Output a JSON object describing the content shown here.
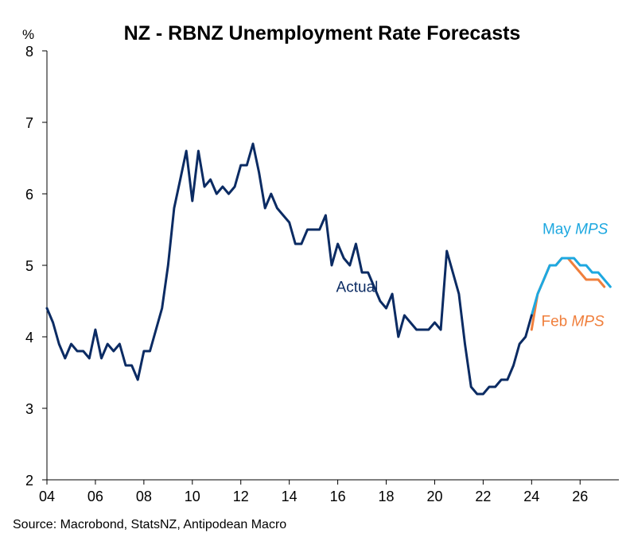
{
  "chart_data": {
    "type": "line",
    "title": "NZ - RBNZ Unemployment Rate Forecasts",
    "ylabel": "%",
    "xlabel": "",
    "xlim": [
      2004,
      2027.6
    ],
    "ylim": [
      2,
      8
    ],
    "yticks": [
      2,
      3,
      4,
      5,
      6,
      7,
      8
    ],
    "xticks": [
      2004,
      2006,
      2008,
      2010,
      2012,
      2014,
      2016,
      2018,
      2020,
      2022,
      2024,
      2026
    ],
    "xtick_labels": [
      "04",
      "06",
      "08",
      "10",
      "12",
      "14",
      "16",
      "18",
      "20",
      "22",
      "24",
      "26"
    ],
    "grid": false,
    "series": [
      {
        "name": "Actual",
        "color": "#0b2b63",
        "x": [
          2004.0,
          2004.25,
          2004.5,
          2004.75,
          2005.0,
          2005.25,
          2005.5,
          2005.75,
          2006.0,
          2006.25,
          2006.5,
          2006.75,
          2007.0,
          2007.25,
          2007.5,
          2007.75,
          2008.0,
          2008.25,
          2008.5,
          2008.75,
          2009.0,
          2009.25,
          2009.5,
          2009.75,
          2010.0,
          2010.25,
          2010.5,
          2010.75,
          2011.0,
          2011.25,
          2011.5,
          2011.75,
          2012.0,
          2012.25,
          2012.5,
          2012.75,
          2013.0,
          2013.25,
          2013.5,
          2013.75,
          2014.0,
          2014.25,
          2014.5,
          2014.75,
          2015.0,
          2015.25,
          2015.5,
          2015.75,
          2016.0,
          2016.25,
          2016.5,
          2016.75,
          2017.0,
          2017.25,
          2017.5,
          2017.75,
          2018.0,
          2018.25,
          2018.5,
          2018.75,
          2019.0,
          2019.25,
          2019.5,
          2019.75,
          2020.0,
          2020.25,
          2020.5,
          2020.75,
          2021.0,
          2021.25,
          2021.5,
          2021.75,
          2022.0,
          2022.25,
          2022.5,
          2022.75,
          2023.0,
          2023.25,
          2023.5,
          2023.75,
          2024.0
        ],
        "values": [
          4.4,
          4.2,
          3.9,
          3.7,
          3.9,
          3.8,
          3.8,
          3.7,
          4.1,
          3.7,
          3.9,
          3.8,
          3.9,
          3.6,
          3.6,
          3.4,
          3.8,
          3.8,
          4.1,
          4.4,
          5.0,
          5.8,
          6.2,
          6.6,
          5.9,
          6.6,
          6.1,
          6.2,
          6.0,
          6.1,
          6.0,
          6.1,
          6.4,
          6.4,
          6.7,
          6.3,
          5.8,
          6.0,
          5.8,
          5.7,
          5.6,
          5.3,
          5.3,
          5.5,
          5.5,
          5.5,
          5.7,
          5.0,
          5.3,
          5.1,
          5.0,
          5.3,
          4.9,
          4.9,
          4.7,
          4.5,
          4.4,
          4.6,
          4.0,
          4.3,
          4.2,
          4.1,
          4.1,
          4.1,
          4.2,
          4.1,
          5.2,
          4.9,
          4.6,
          3.9,
          3.3,
          3.2,
          3.2,
          3.3,
          3.3,
          3.4,
          3.4,
          3.6,
          3.9,
          4.0,
          4.3
        ]
      },
      {
        "name": "Feb MPS",
        "color": "#f07f3c",
        "x": [
          2024.0,
          2024.25,
          2024.5,
          2024.75,
          2025.0,
          2025.25,
          2025.5,
          2025.75,
          2026.0,
          2026.25,
          2026.5,
          2026.75,
          2027.0
        ],
        "values": [
          4.1,
          4.6,
          4.8,
          5.0,
          5.0,
          5.1,
          5.1,
          5.0,
          4.9,
          4.8,
          4.8,
          4.8,
          4.7
        ]
      },
      {
        "name": "May MPS",
        "color": "#1ea8e0",
        "x": [
          2024.0,
          2024.25,
          2024.5,
          2024.75,
          2025.0,
          2025.25,
          2025.5,
          2025.75,
          2026.0,
          2026.25,
          2026.5,
          2026.75,
          2027.0,
          2027.25
        ],
        "values": [
          4.3,
          4.6,
          4.8,
          5.0,
          5.0,
          5.1,
          5.1,
          5.1,
          5.0,
          5.0,
          4.9,
          4.9,
          4.8,
          4.7
        ]
      }
    ],
    "annotations": [
      {
        "text": "Actual",
        "color": "#0b2b63",
        "x": 2016.8,
        "y": 4.63,
        "italic_part": ""
      },
      {
        "text": "May ",
        "color": "#1ea8e0",
        "x": 2025.8,
        "y": 5.44,
        "italic_part": "MPS"
      },
      {
        "text": "Feb ",
        "color": "#f07f3c",
        "x": 2025.7,
        "y": 4.15,
        "italic_part": "MPS"
      }
    ]
  },
  "source": "Source: Macrobond, StatsNZ, Antipodean Macro"
}
